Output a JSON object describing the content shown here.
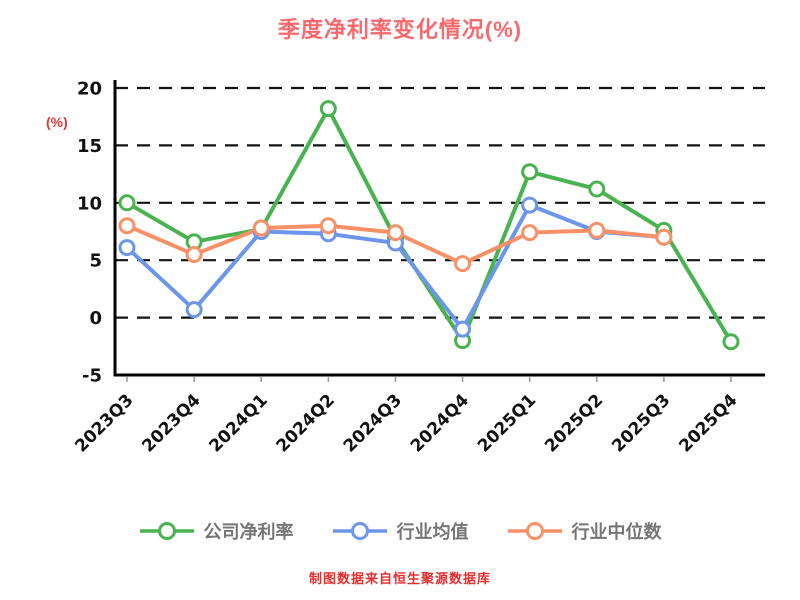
{
  "title": "季度净利率变化情况(%)",
  "y_axis_label": "(%)",
  "footer": "制图数据来自恒生聚源数据库",
  "colors": {
    "title": "#f8696e",
    "y_axis_label": "#e03a3a",
    "footer": "#e02f2f",
    "axis": "#000000",
    "grid": "#141414",
    "tick_text": "#121212",
    "legend_text": "#757575"
  },
  "chart_data": {
    "type": "line",
    "title": "季度净利率变化情况(%)",
    "ylabel": "(%)",
    "categories": [
      "2023Q3",
      "2023Q4",
      "2024Q1",
      "2024Q2",
      "2024Q3",
      "2024Q4",
      "2025Q1",
      "2025Q2",
      "2025Q3",
      "2025Q4"
    ],
    "series": [
      {
        "name": "公司净利率",
        "color": "#49b34f",
        "values": [
          10.0,
          6.6,
          7.7,
          18.2,
          6.9,
          -2.0,
          12.7,
          11.2,
          7.6,
          -2.1
        ]
      },
      {
        "name": "行业均值",
        "color": "#6b96ea",
        "values": [
          6.1,
          0.7,
          7.5,
          7.3,
          6.5,
          -1.0,
          9.8,
          7.5,
          7.0,
          null
        ]
      },
      {
        "name": "行业中位数",
        "color": "#f99066",
        "values": [
          8.0,
          5.5,
          7.8,
          8.0,
          7.4,
          4.7,
          7.4,
          7.6,
          7.0,
          null
        ]
      }
    ],
    "ylim": [
      -5,
      20
    ],
    "yticks": [
      20,
      15,
      10,
      5,
      0,
      -5
    ],
    "grid": true,
    "grid_style": "dashed",
    "legend_position": "bottom",
    "marker": "circle-open"
  }
}
